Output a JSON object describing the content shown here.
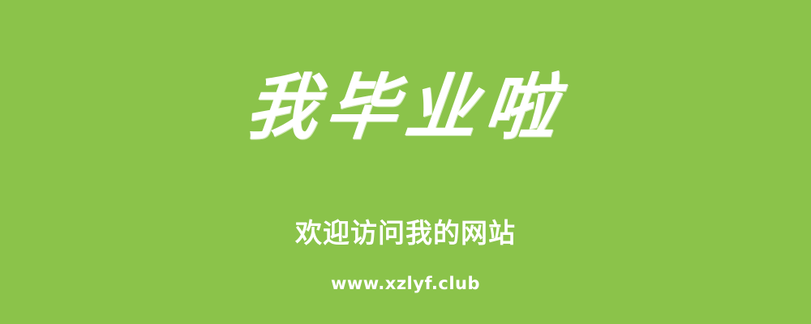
{
  "banner": {
    "background_color": "#8bc34a",
    "text_color": "#ffffff",
    "headline": "我毕业啦",
    "subtitle": "欢迎访问我的网站",
    "url": "www.xzlyf.club"
  }
}
